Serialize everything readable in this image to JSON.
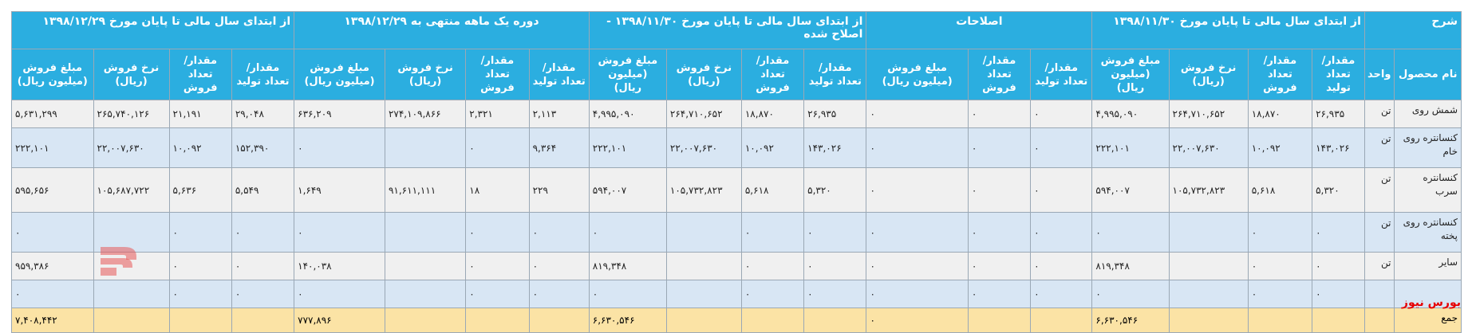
{
  "headers": {
    "top": {
      "desc": "شرح",
      "g1": "از ابتدای سال مالی تا پایان مورخ ۱۳۹۸/۱۱/۳۰",
      "g2": "اصلاحات",
      "g3": "از ابتدای سال مالی تا پایان مورخ ۱۳۹۸/۱۱/۳۰ - اصلاح شده",
      "g4": "دوره یک ماهه منتهی به ۱۳۹۸/۱۲/۲۹",
      "g5": "از ابتدای سال مالی تا پایان مورخ ۱۳۹۸/۱۲/۲۹"
    },
    "sub": {
      "name": "نام محصول",
      "unit": "واحد",
      "g1": [
        "مقدار/تعداد تولید",
        "مقدار/تعداد فروش",
        "نرخ فروش (ریال)",
        "مبلغ فروش (میلیون ریال)"
      ],
      "g2": [
        "مقدار/تعداد تولید",
        "مقدار/تعداد فروش",
        "مبلغ فروش (میلیون ریال)"
      ],
      "g3": [
        "مقدار/تعداد تولید",
        "مقدار/تعداد فروش",
        "نرخ فروش (ریال)",
        "مبلغ فروش (میلیون ریال)"
      ],
      "g4": [
        "مقدار/تعداد تولید",
        "مقدار/تعداد فروش",
        "نرخ فروش (ریال)",
        "مبلغ فروش (میلیون ریال)"
      ],
      "g5": [
        "مقدار/تعداد تولید",
        "مقدار/تعداد فروش",
        "نرخ فروش (ریال)",
        "مبلغ فروش (میلیون ریال)"
      ]
    }
  },
  "rows": [
    {
      "name": "شمش روی",
      "unit": "تن",
      "cells": [
        "۲۶,۹۳۵",
        "۱۸,۸۷۰",
        "۲۶۴,۷۱۰,۶۵۲",
        "۴,۹۹۵,۰۹۰",
        "۰",
        "۰",
        "۰",
        "۲۶,۹۳۵",
        "۱۸,۸۷۰",
        "۲۶۴,۷۱۰,۶۵۲",
        "۴,۹۹۵,۰۹۰",
        "۲,۱۱۳",
        "۲,۳۲۱",
        "۲۷۴,۱۰۹,۸۶۶",
        "۶۳۶,۲۰۹",
        "۲۹,۰۴۸",
        "۲۱,۱۹۱",
        "۲۶۵,۷۴۰,۱۲۶",
        "۵,۶۳۱,۲۹۹"
      ]
    },
    {
      "name": "کنسانتره روی خام",
      "unit": "تن",
      "cells": [
        "۱۴۳,۰۲۶",
        "۱۰,۰۹۲",
        "۲۲,۰۰۷,۶۳۰",
        "۲۲۲,۱۰۱",
        "۰",
        "۰",
        "۰",
        "۱۴۳,۰۲۶",
        "۱۰,۰۹۲",
        "۲۲,۰۰۷,۶۳۰",
        "۲۲۲,۱۰۱",
        "۹,۳۶۴",
        "۰",
        "",
        "۰",
        "۱۵۲,۳۹۰",
        "۱۰,۰۹۲",
        "۲۲,۰۰۷,۶۳۰",
        "۲۲۲,۱۰۱"
      ]
    },
    {
      "name": "کنسانتره سرب",
      "unit": "تن",
      "cells": [
        "۵,۳۲۰",
        "۵,۶۱۸",
        "۱۰۵,۷۳۲,۸۲۳",
        "۵۹۴,۰۰۷",
        "۰",
        "۰",
        "۰",
        "۵,۳۲۰",
        "۵,۶۱۸",
        "۱۰۵,۷۳۲,۸۲۳",
        "۵۹۴,۰۰۷",
        "۲۲۹",
        "۱۸",
        "۹۱,۶۱۱,۱۱۱",
        "۱,۶۴۹",
        "۵,۵۴۹",
        "۵,۶۳۶",
        "۱۰۵,۶۸۷,۷۲۲",
        "۵۹۵,۶۵۶"
      ]
    },
    {
      "name": "کنسانتره روی پخته",
      "unit": "تن",
      "cells": [
        "۰",
        "۰",
        "",
        "۰",
        "۰",
        "۰",
        "۰",
        "۰",
        "۰",
        "",
        "۰",
        "۰",
        "۰",
        "",
        "۰",
        "۰",
        "۰",
        "",
        "۰"
      ]
    },
    {
      "name": "سایر",
      "unit": "تن",
      "cells": [
        "۰",
        "۰",
        "",
        "۸۱۹,۳۴۸",
        "۰",
        "۰",
        "۰",
        "۰",
        "۰",
        "",
        "۸۱۹,۳۴۸",
        "۰",
        "۰",
        "",
        "۱۴۰,۰۳۸",
        "۰",
        "۰",
        "",
        "۹۵۹,۳۸۶"
      ]
    },
    {
      "name": "",
      "unit": "",
      "cells": [
        "۰",
        "۰",
        "",
        "۰",
        "۰",
        "۰",
        "۰",
        "۰",
        "۰",
        "",
        "۰",
        "۰",
        "۰",
        "",
        "۰",
        "۰",
        "۰",
        "",
        "۰"
      ]
    }
  ],
  "total": {
    "label": "جمع",
    "g1_amount": "۶,۶۳۰,۵۴۶",
    "g2_amount": "۰",
    "g3_amount": "۶,۶۳۰,۵۴۶",
    "g4_amount": "۷۷۷,۸۹۶",
    "g5_amount": "۷,۴۰۸,۴۴۲"
  },
  "watermark": "بورس نیوز",
  "logo_text": "بورس نیوز"
}
